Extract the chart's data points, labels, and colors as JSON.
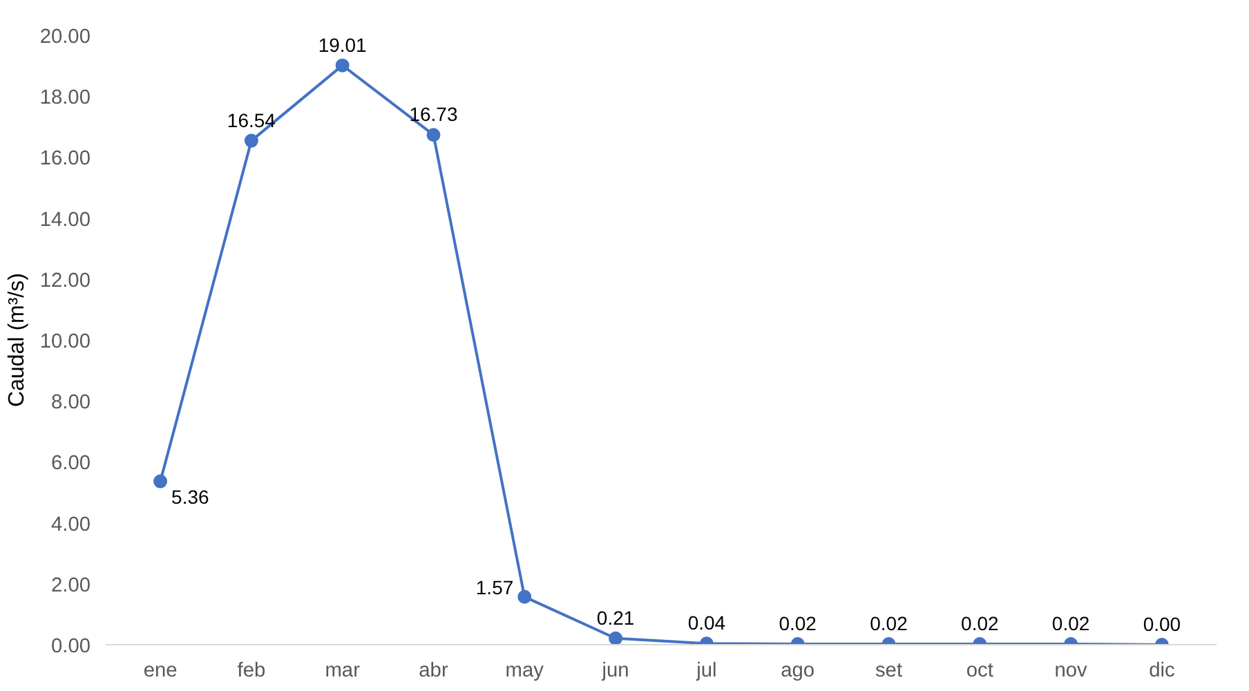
{
  "chart_data": {
    "type": "line",
    "ylabel": "Caudal (m³/s)",
    "categories": [
      "ene",
      "feb",
      "mar",
      "abr",
      "may",
      "jun",
      "jul",
      "ago",
      "set",
      "oct",
      "nov",
      "dic"
    ],
    "series": [
      {
        "color": "#4472c4",
        "values": [
          5.36,
          16.54,
          19.01,
          16.73,
          1.57,
          0.21,
          0.04,
          0.02,
          0.02,
          0.02,
          0.02,
          0.0
        ],
        "value_labels": [
          "5.36",
          "16.54",
          "19.01",
          "16.73",
          "1.57",
          "0.21",
          "0.04",
          "0.02",
          "0.02",
          "0.02",
          "0.02",
          "0.00"
        ]
      }
    ],
    "ylim": [
      0,
      20
    ],
    "yticks": [
      {
        "value": 0,
        "label": "0.00"
      },
      {
        "value": 2,
        "label": "2.00"
      },
      {
        "value": 4,
        "label": "4.00"
      },
      {
        "value": 6,
        "label": "6.00"
      },
      {
        "value": 8,
        "label": "8.00"
      },
      {
        "value": 10,
        "label": "10.00"
      },
      {
        "value": 12,
        "label": "12.00"
      },
      {
        "value": 14,
        "label": "14.00"
      },
      {
        "value": 16,
        "label": "16.00"
      },
      {
        "value": 18,
        "label": "18.00"
      },
      {
        "value": 20,
        "label": "20.00"
      }
    ],
    "marker": "circle",
    "line_style": "solid"
  }
}
